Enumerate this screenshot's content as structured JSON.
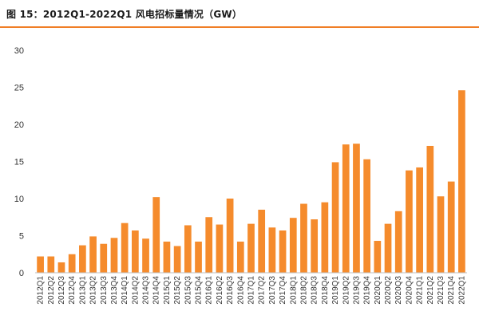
{
  "figure": {
    "title": "图 15：2012Q1-2022Q1 风电招标量情况（GW）"
  },
  "colors": {
    "bar": "#f58b2c",
    "rule": "#f07e26",
    "axis": "#bfbfbf",
    "text": "#333333"
  },
  "chart_data": {
    "type": "bar",
    "title": "图 15：2012Q1-2022Q1 风电招标量情况（GW）",
    "xlabel": "",
    "ylabel": "",
    "ylim": [
      0,
      30
    ],
    "yticks": [
      0,
      5,
      10,
      15,
      20,
      25,
      30
    ],
    "grid": false,
    "legend": "none",
    "categories": [
      "2012Q1",
      "2012Q2",
      "2012Q3",
      "2012Q4",
      "2013Q1",
      "2013Q2",
      "2013Q3",
      "2013Q4",
      "2014Q1",
      "2014Q2",
      "2014Q3",
      "2014Q4",
      "2015Q1",
      "2015Q2",
      "2015Q3",
      "2015Q4",
      "2016Q1",
      "2016Q2",
      "2016Q3",
      "2016Q4",
      "2017Q1",
      "2017Q2",
      "2017Q3",
      "2017Q4",
      "2018Q1",
      "2018Q2",
      "2018Q3",
      "2018Q4",
      "2019Q1",
      "2019Q2",
      "2019Q3",
      "2019Q4",
      "2020Q1",
      "2020Q2",
      "2020Q3",
      "2020Q4",
      "2021Q1",
      "2021Q2",
      "2021Q3",
      "2021Q4",
      "2022Q1"
    ],
    "values": [
      2.2,
      2.2,
      1.4,
      2.5,
      3.7,
      4.9,
      3.9,
      4.7,
      6.7,
      5.7,
      4.6,
      10.2,
      4.2,
      3.6,
      6.4,
      4.2,
      7.5,
      6.5,
      10.0,
      4.2,
      6.6,
      8.5,
      6.1,
      5.7,
      7.4,
      9.3,
      7.2,
      9.5,
      14.9,
      17.3,
      17.4,
      15.3,
      4.3,
      6.6,
      8.3,
      13.8,
      14.2,
      17.1,
      10.3,
      12.3,
      24.6
    ]
  }
}
